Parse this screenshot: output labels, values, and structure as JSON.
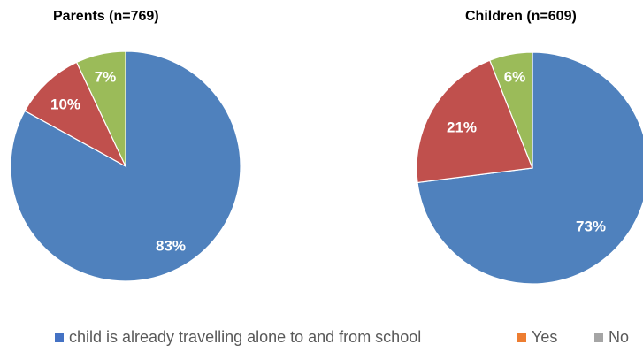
{
  "chart_data": [
    {
      "type": "pie",
      "title": "Parents (n=769)",
      "slices": [
        {
          "category": "child is already travelling alone to and from school",
          "value": 83,
          "label": "83%",
          "color": "#4f81bd"
        },
        {
          "category": "",
          "value": 10,
          "label": "10%",
          "color": "#c0504d"
        },
        {
          "category": "",
          "value": 7,
          "label": "7%",
          "color": "#9bbb59"
        }
      ]
    },
    {
      "type": "pie",
      "title": "Children (n=609)",
      "slices": [
        {
          "category": "child is already travelling alone to and from school",
          "value": 73,
          "label": "73%",
          "color": "#4f81bd"
        },
        {
          "category": "",
          "value": 21,
          "label": "21%",
          "color": "#c0504d"
        },
        {
          "category": "",
          "value": 6,
          "label": "6%",
          "color": "#9bbb59"
        }
      ]
    }
  ],
  "legend": {
    "placement": "bottom",
    "items": [
      {
        "label": "child is already travelling alone to and from school",
        "color": "#4472c4"
      },
      {
        "label": "Yes",
        "color": "#ed7d31"
      },
      {
        "label": "No",
        "color": "#a5a5a5"
      }
    ]
  }
}
